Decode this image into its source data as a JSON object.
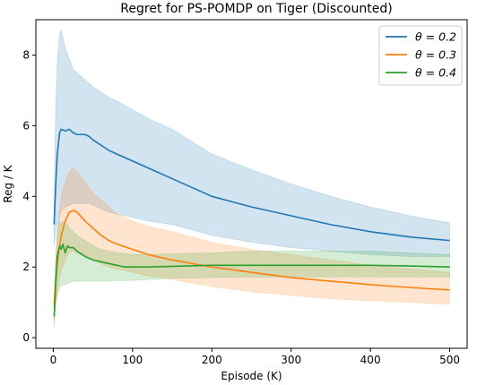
{
  "chart_data": {
    "type": "line",
    "title": "Regret for PS-POMDP on Tiger (Discounted)",
    "xlabel": "Episode (K)",
    "ylabel": "Reg / K",
    "xlim": [
      -22,
      522
    ],
    "ylim": [
      -0.3,
      9.0
    ],
    "xticks": [
      0,
      100,
      200,
      300,
      400,
      500
    ],
    "yticks": [
      0,
      2,
      4,
      6,
      8
    ],
    "grid": false,
    "legend_position": "top-right",
    "series": [
      {
        "name": "θ = 0.2",
        "color": "#1f77b4",
        "x": [
          1,
          3,
          5,
          8,
          10,
          15,
          20,
          25,
          30,
          40,
          45,
          50,
          60,
          70,
          80,
          100,
          120,
          150,
          200,
          250,
          300,
          350,
          400,
          450,
          500
        ],
        "y": [
          3.2,
          4.3,
          5.2,
          5.8,
          5.9,
          5.85,
          5.9,
          5.8,
          5.75,
          5.75,
          5.7,
          5.6,
          5.45,
          5.3,
          5.2,
          5.0,
          4.8,
          4.5,
          4.0,
          3.7,
          3.45,
          3.2,
          3.0,
          2.85,
          2.75
        ],
        "lower": [
          2.6,
          3.0,
          3.2,
          3.4,
          3.6,
          3.7,
          3.75,
          3.8,
          3.8,
          3.8,
          3.8,
          3.75,
          3.65,
          3.55,
          3.5,
          3.4,
          3.3,
          3.2,
          2.9,
          2.7,
          2.55,
          2.45,
          2.35,
          2.3,
          2.3
        ],
        "upper": [
          3.8,
          6.5,
          7.8,
          8.6,
          8.7,
          8.2,
          7.9,
          7.6,
          7.5,
          7.3,
          7.2,
          7.1,
          6.95,
          6.8,
          6.7,
          6.45,
          6.2,
          5.9,
          5.2,
          4.75,
          4.35,
          4.0,
          3.7,
          3.45,
          3.25
        ]
      },
      {
        "name": "θ = 0.3",
        "color": "#ff7f0e",
        "x": [
          1,
          3,
          5,
          8,
          10,
          15,
          20,
          25,
          30,
          40,
          50,
          60,
          70,
          80,
          100,
          120,
          150,
          200,
          250,
          300,
          350,
          400,
          450,
          500
        ],
        "y": [
          0.9,
          1.6,
          2.1,
          2.6,
          2.9,
          3.3,
          3.55,
          3.6,
          3.55,
          3.3,
          3.1,
          2.9,
          2.75,
          2.65,
          2.5,
          2.35,
          2.2,
          2.0,
          1.85,
          1.7,
          1.6,
          1.5,
          1.42,
          1.35
        ],
        "lower": [
          0.5,
          1.0,
          1.3,
          1.7,
          1.9,
          2.2,
          2.4,
          2.45,
          2.4,
          2.3,
          2.2,
          2.1,
          2.0,
          1.95,
          1.85,
          1.75,
          1.65,
          1.45,
          1.3,
          1.2,
          1.1,
          1.05,
          1.0,
          0.95
        ],
        "upper": [
          1.4,
          2.2,
          3.0,
          3.6,
          4.0,
          4.4,
          4.7,
          4.8,
          4.7,
          4.4,
          4.1,
          3.9,
          3.7,
          3.5,
          3.3,
          3.15,
          3.0,
          2.7,
          2.5,
          2.35,
          2.2,
          2.05,
          1.95,
          1.85
        ]
      },
      {
        "name": "θ = 0.4",
        "color": "#2ca02c",
        "x": [
          1,
          3,
          5,
          8,
          10,
          12,
          15,
          18,
          20,
          25,
          30,
          40,
          50,
          60,
          70,
          80,
          90,
          100,
          120,
          150,
          200,
          250,
          300,
          350,
          400,
          450,
          500
        ],
        "y": [
          0.6,
          1.5,
          2.3,
          2.6,
          2.5,
          2.65,
          2.4,
          2.6,
          2.55,
          2.55,
          2.45,
          2.3,
          2.2,
          2.15,
          2.1,
          2.05,
          2.0,
          2.0,
          2.0,
          2.02,
          2.05,
          2.05,
          2.05,
          2.05,
          2.05,
          2.03,
          2.0
        ],
        "lower": [
          0.3,
          0.9,
          1.2,
          1.4,
          1.45,
          1.5,
          1.5,
          1.55,
          1.55,
          1.6,
          1.6,
          1.6,
          1.6,
          1.6,
          1.6,
          1.62,
          1.62,
          1.62,
          1.65,
          1.68,
          1.7,
          1.72,
          1.72,
          1.72,
          1.72,
          1.72,
          1.72
        ],
        "upper": [
          0.9,
          2.2,
          3.0,
          3.3,
          3.2,
          3.3,
          3.2,
          3.2,
          3.1,
          3.0,
          2.9,
          2.75,
          2.6,
          2.5,
          2.45,
          2.4,
          2.38,
          2.35,
          2.35,
          2.38,
          2.4,
          2.45,
          2.45,
          2.45,
          2.45,
          2.4,
          2.35
        ]
      }
    ]
  }
}
